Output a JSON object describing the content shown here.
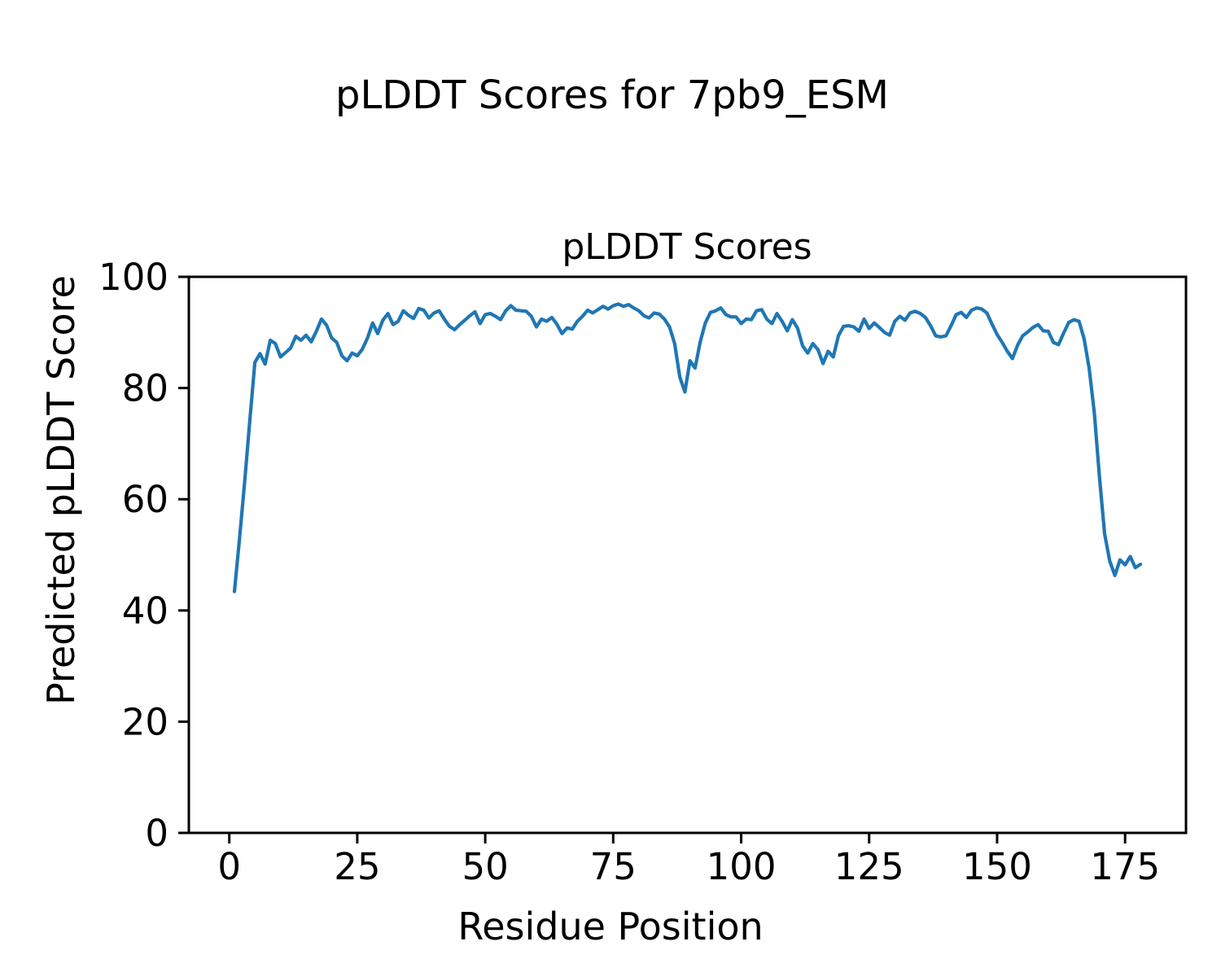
{
  "figure": {
    "suptitle": "pLDDT Scores for 7pb9_ESM",
    "axes_title": "pLDDT Scores",
    "xlabel": "Residue Position",
    "ylabel": "Predicted pLDDT Score"
  },
  "colors": {
    "line": "#1f77b4",
    "spine": "#000000",
    "text": "#000000",
    "background": "#ffffff"
  },
  "chart_data": {
    "type": "line",
    "title": "pLDDT Scores",
    "suptitle": "pLDDT Scores for 7pb9_ESM",
    "xlabel": "Residue Position",
    "ylabel": "Predicted pLDDT Score",
    "xlim": [
      -7.9,
      186.9
    ],
    "ylim": [
      0,
      100
    ],
    "x_ticks": [
      0,
      25,
      50,
      75,
      100,
      125,
      150,
      175
    ],
    "y_ticks": [
      0,
      20,
      40,
      60,
      80,
      100
    ],
    "grid": false,
    "legend": "none",
    "series": [
      {
        "name": "pLDDT",
        "x_start": 1,
        "x_step": 1,
        "values": [
          43.4,
          53.0,
          63.0,
          74.0,
          84.6,
          86.2,
          84.3,
          88.6,
          88.0,
          85.6,
          86.4,
          87.2,
          89.3,
          88.6,
          89.5,
          88.3,
          90.2,
          92.4,
          91.3,
          89.0,
          88.2,
          85.8,
          84.9,
          86.3,
          85.8,
          87.0,
          89.0,
          91.7,
          89.8,
          92.2,
          93.4,
          91.4,
          92.0,
          93.9,
          93.1,
          92.5,
          94.3,
          94.0,
          92.6,
          93.5,
          93.9,
          92.4,
          91.1,
          90.5,
          91.4,
          92.2,
          93.0,
          93.7,
          91.6,
          93.2,
          93.4,
          92.9,
          92.3,
          93.9,
          94.8,
          94.0,
          93.9,
          93.8,
          92.9,
          91.0,
          92.4,
          92.0,
          92.7,
          91.5,
          89.8,
          90.8,
          90.6,
          92.0,
          92.9,
          94.0,
          93.5,
          94.1,
          94.7,
          94.2,
          94.8,
          95.1,
          94.7,
          95.0,
          94.4,
          93.9,
          93.0,
          92.6,
          93.5,
          93.3,
          92.4,
          91.0,
          88.0,
          82.0,
          79.3,
          84.9,
          83.6,
          88.3,
          91.7,
          93.6,
          93.9,
          94.4,
          93.2,
          92.8,
          92.8,
          91.6,
          92.4,
          92.3,
          93.9,
          94.1,
          92.4,
          91.6,
          93.4,
          92.0,
          90.3,
          92.3,
          90.8,
          87.6,
          86.3,
          88.0,
          86.9,
          84.4,
          86.6,
          85.6,
          89.4,
          91.1,
          91.2,
          91.0,
          90.2,
          92.4,
          90.7,
          91.7,
          90.9,
          90.0,
          89.5,
          92.0,
          92.9,
          92.2,
          93.5,
          93.8,
          93.4,
          92.7,
          91.2,
          89.4,
          89.2,
          89.4,
          91.2,
          93.2,
          93.6,
          92.7,
          94.0,
          94.4,
          94.2,
          93.5,
          91.5,
          89.6,
          88.2,
          86.6,
          85.3,
          87.7,
          89.4,
          90.1,
          90.9,
          91.4,
          90.3,
          90.2,
          88.2,
          87.8,
          89.9,
          91.8,
          92.3,
          92.0,
          88.8,
          83.5,
          75.5,
          64.0,
          53.8,
          48.9,
          46.3,
          49.1,
          48.2,
          49.7,
          47.7,
          48.3
        ]
      }
    ]
  }
}
